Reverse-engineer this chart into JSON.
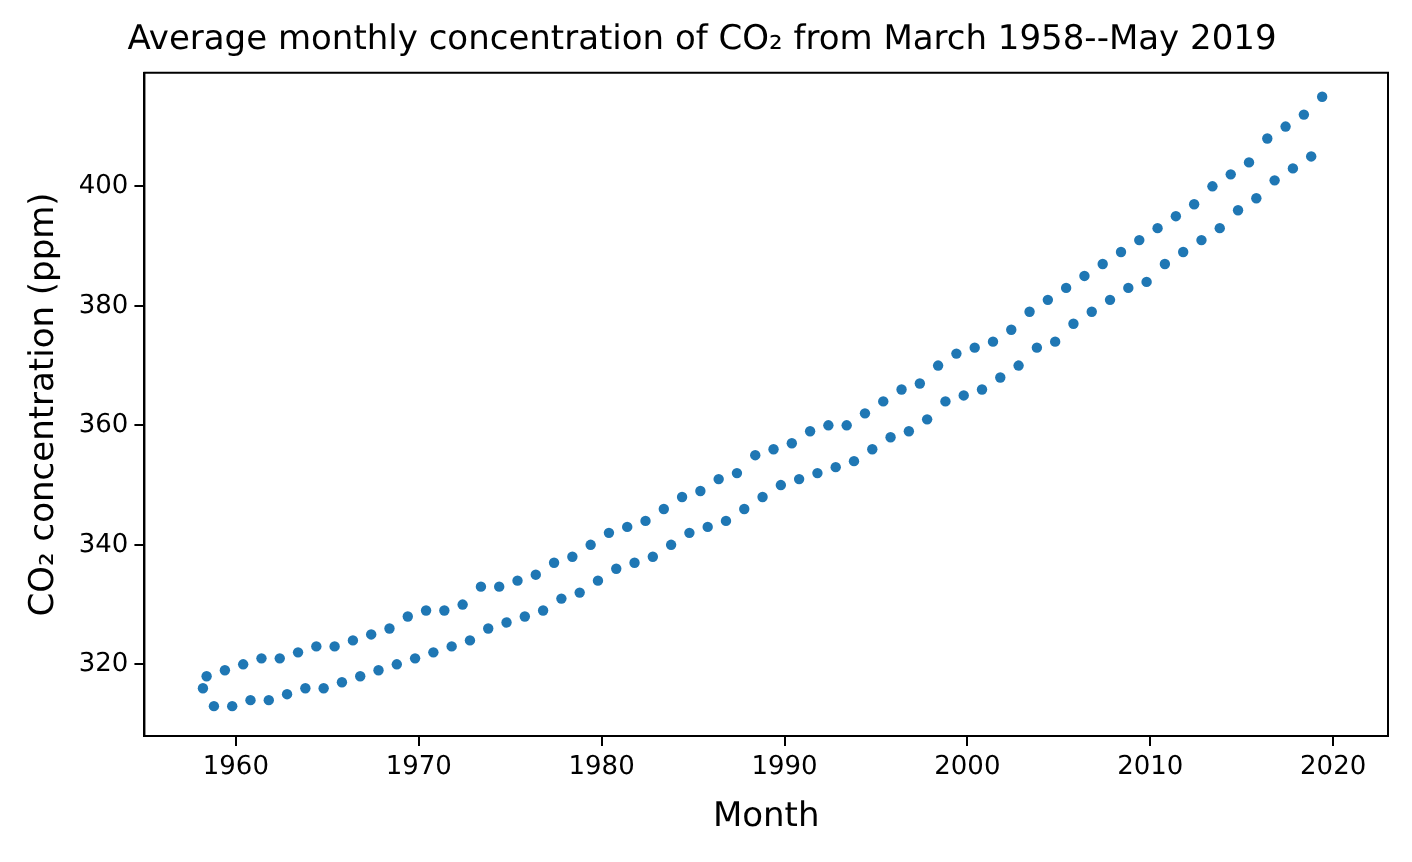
{
  "chart_data": {
    "type": "scatter",
    "title": "Average monthly concentration of CO₂ from March 1958--May 2019",
    "xlabel": "Month",
    "ylabel": "CO₂ concentration (ppm)",
    "x": [
      1958.2,
      1958.4,
      1958.8,
      1959.4,
      1959.8,
      1960.4,
      1960.8,
      1961.4,
      1961.8,
      1962.4,
      1962.8,
      1963.4,
      1963.8,
      1964.4,
      1964.8,
      1965.4,
      1965.8,
      1966.4,
      1966.8,
      1967.4,
      1967.8,
      1968.4,
      1968.8,
      1969.4,
      1969.8,
      1970.4,
      1970.8,
      1971.4,
      1971.8,
      1972.4,
      1972.8,
      1973.4,
      1973.8,
      1974.4,
      1974.8,
      1975.4,
      1975.8,
      1976.4,
      1976.8,
      1977.4,
      1977.8,
      1978.4,
      1978.8,
      1979.4,
      1979.8,
      1980.4,
      1980.8,
      1981.4,
      1981.8,
      1982.4,
      1982.8,
      1983.4,
      1983.8,
      1984.4,
      1984.8,
      1985.4,
      1985.8,
      1986.4,
      1986.8,
      1987.4,
      1987.8,
      1988.4,
      1988.8,
      1989.4,
      1989.8,
      1990.4,
      1990.8,
      1991.4,
      1991.8,
      1992.4,
      1992.8,
      1993.4,
      1993.8,
      1994.4,
      1994.8,
      1995.4,
      1995.8,
      1996.4,
      1996.8,
      1997.4,
      1997.8,
      1998.4,
      1998.8,
      1999.4,
      1999.8,
      2000.4,
      2000.8,
      2001.4,
      2001.8,
      2002.4,
      2002.8,
      2003.4,
      2003.8,
      2004.4,
      2004.8,
      2005.4,
      2005.8,
      2006.4,
      2006.8,
      2007.4,
      2007.8,
      2008.4,
      2008.8,
      2009.4,
      2009.8,
      2010.4,
      2010.8,
      2011.4,
      2011.8,
      2012.4,
      2012.8,
      2013.4,
      2013.8,
      2014.4,
      2014.8,
      2015.4,
      2015.8,
      2016.4,
      2016.8,
      2017.4,
      2017.8,
      2018.4,
      2018.8,
      2019.4
    ],
    "values": [
      316,
      318,
      313,
      319,
      313,
      320,
      314,
      321,
      314,
      321,
      315,
      322,
      316,
      323,
      316,
      323,
      317,
      324,
      318,
      325,
      319,
      326,
      320,
      328,
      321,
      329,
      322,
      329,
      323,
      330,
      324,
      333,
      326,
      333,
      327,
      334,
      328,
      335,
      329,
      337,
      331,
      338,
      332,
      340,
      334,
      342,
      336,
      343,
      337,
      344,
      338,
      346,
      340,
      348,
      342,
      349,
      343,
      351,
      344,
      352,
      346,
      355,
      348,
      356,
      350,
      357,
      351,
      359,
      352,
      360,
      353,
      360,
      354,
      362,
      356,
      364,
      358,
      366,
      359,
      367,
      361,
      370,
      364,
      372,
      365,
      373,
      366,
      374,
      368,
      376,
      370,
      379,
      373,
      381,
      374,
      383,
      377,
      385,
      379,
      387,
      381,
      389,
      383,
      391,
      384,
      393,
      387,
      395,
      389,
      397,
      391,
      400,
      393,
      402,
      396,
      404,
      398,
      408,
      401,
      410,
      403,
      412,
      405,
      415
    ],
    "color": "#1f77b4",
    "marker": "circle",
    "xlim": [
      1955,
      2023
    ],
    "ylim": [
      308,
      419
    ],
    "xticks": [
      1960,
      1970,
      1980,
      1990,
      2000,
      2010,
      2020
    ],
    "yticks": [
      320,
      340,
      360,
      380,
      400
    ],
    "grid": false,
    "legend": false
  }
}
